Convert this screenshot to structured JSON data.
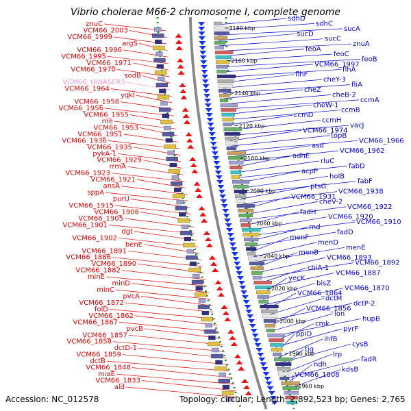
{
  "title": "Vibrio cholerae M66-2 chromosome I, complete genome",
  "footer": {
    "accession": "Accession: NC_012578",
    "topology": "Topology: circular; Length: 2,892,523 bp; Genes: 2,765"
  },
  "colors": {
    "left_labels": "#e00000",
    "right_labels": "#0000cc",
    "rna_label": "#ff99cc",
    "tick_green": "#228822",
    "backbone": "#888888"
  },
  "kbp_ticks": [
    "2180 kbp",
    "2160 kbp",
    "2140 kbp",
    "2120 kbp",
    "2100 kbp",
    "2080 kbp",
    "2060 kbp",
    "2040 kbp",
    "2020 kbp",
    "2000 kbp",
    "1980 kbp",
    "1960 kbp"
  ],
  "left_genes": [
    "znuC",
    "VCM66_2003",
    "VCM66_1999",
    "argS",
    "VCM66_1996",
    "VCM66_1995",
    "VCM66_1971",
    "VCM66_1970",
    "sodB",
    "VCM66_tRNASER5",
    "VCM66_1964",
    "yqkI",
    "VCM66_1958",
    "VCM66_1956",
    "VCM66_1955",
    "rne",
    "VCM66_1953",
    "VCM66_1951",
    "VCM66_1936",
    "VCM66_1935",
    "pykA-1",
    "VCM66_1929",
    "rrmA",
    "VCM66_1923",
    "VCM66_1921",
    "ansA",
    "sppA",
    "purU",
    "VCM66_1915",
    "VCM66_1906",
    "VCM66_1905",
    "VCM66_1901",
    "dgt",
    "VCM66_1902",
    "benE",
    "VCM66_1891",
    "VCM66_1886",
    "VCM66_1890",
    "VCM66_1882",
    "minE",
    "minD",
    "minC",
    "pvcA",
    "VCM66_1872",
    "folD",
    "VCM66_1862",
    "VCM66_1867",
    "pvcB",
    "VCM66_1857",
    "VCM66_1858",
    "dctD-1",
    "VCM66_1859",
    "dctB",
    "VCM66_1848",
    "miaE",
    "VCM66_1833",
    "ald"
  ],
  "right_genes": [
    "sdhD",
    "sdhC",
    "sucA",
    "sucD",
    "sucC",
    "znuA",
    "feoA",
    "feoC",
    "feoB",
    "VCM66_1997",
    "flhA",
    "flhF",
    "cheY-3",
    "fliA",
    "cheZ",
    "cheB-2",
    "ccmA",
    "cheW-1",
    "ccmB",
    "ccmD",
    "ccmH",
    "vacJ",
    "VCM66_1974",
    "topB",
    "VCM66_1966",
    "asd",
    "VCM66_1962",
    "adhE",
    "rluC",
    "fabD",
    "acpP",
    "holB",
    "fabF",
    "ptsG",
    "VCM66_1938",
    "VCM66_1931",
    "cheV-2",
    "VCM66_1922",
    "fadH",
    "VCM66_1920",
    "VCM66_1910",
    "rnd",
    "fadD",
    "menF",
    "menD",
    "menE",
    "menB",
    "VCM66_1893",
    "VCM66_1892",
    "chiA-1",
    "VCM66_1887",
    "yecK",
    "bisZ",
    "VCM66_1870",
    "VCM66_1864",
    "dctM",
    "dctP-2",
    "VCM66_1856",
    "lon",
    "hupB",
    "cmk",
    "pyrF",
    "ppiD",
    "ihfB",
    "cysB",
    "tig",
    "lrp",
    "fadR",
    "ndh",
    "kdsB",
    "VCM66_1808"
  ]
}
